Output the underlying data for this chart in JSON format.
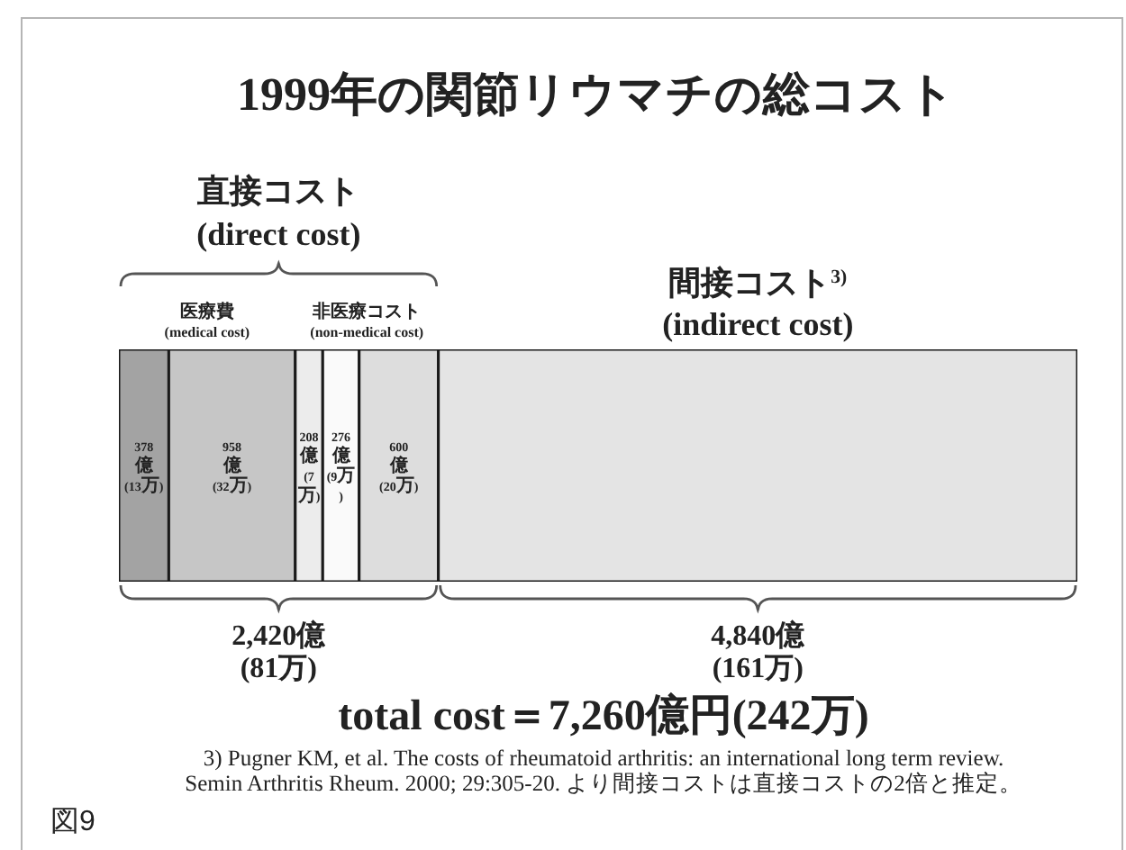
{
  "chart_data": {
    "type": "bar",
    "orientation": "horizontal",
    "stacked": true,
    "title": "1999年の関節リウマチの総コスト",
    "categories": [
      null
    ],
    "tick_labels": false,
    "series": [
      {
        "color": "#a3a3a3",
        "values": [
          378
        ],
        "value_labels": [
          "378\n億\n(13万)"
        ]
      },
      {
        "color": "#c6c6c6",
        "values": [
          958
        ],
        "value_labels": [
          "958\n億\n(32万)"
        ]
      },
      {
        "color": "#ececec",
        "values": [
          208
        ],
        "value_labels": [
          "208\n億\n(7万)"
        ]
      },
      {
        "color": "#fafafa",
        "values": [
          276
        ],
        "value_labels": [
          "276\n億\n(9万)"
        ]
      },
      {
        "color": "#dddddd",
        "values": [
          600
        ],
        "value_labels": [
          "600\n億\n(20万)"
        ]
      },
      {
        "color": "#e4e4e4",
        "values": [
          4840
        ]
      }
    ],
    "annotations": [
      "直接コスト\n(direct cost)",
      "医療費\n(medical cost)",
      "非医療コスト\n(non-medical cost)",
      "間接コスト$^{3)}$\n(indirect cost)",
      "2,420億\n(81万)",
      "4,840億\n(161万)",
      "total cost＝7,260億円(242万)",
      "3) Pugner KM, et al. The costs of rheumatoid arthritis: an international long term review.\nSemin Arthritis Rheum. 2000; 29:305-20. より間接コストは直接コストの2倍と推定。",
      "図9"
    ]
  }
}
